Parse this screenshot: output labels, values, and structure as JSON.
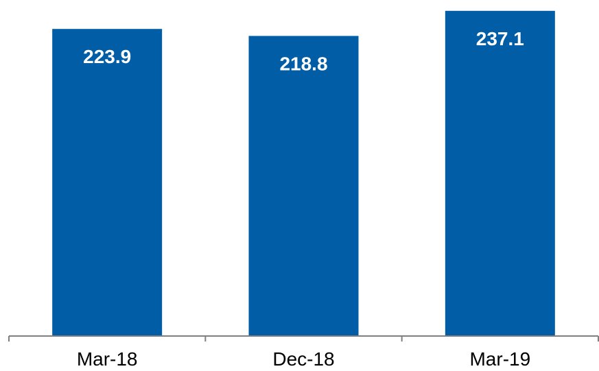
{
  "chart_data": {
    "type": "bar",
    "categories": [
      "Mar-18",
      "Dec-18",
      "Mar-19"
    ],
    "values": [
      223.9,
      218.8,
      237.1
    ],
    "data_labels": [
      "223.9",
      "218.8",
      "237.1"
    ],
    "ylim": [
      0,
      240
    ],
    "grid": false,
    "legend": "none",
    "colors": {
      "bar": "#005DA6",
      "axis": "#7F7F7F",
      "data_label": "#FFFFFF",
      "tick_label": "#000000"
    }
  }
}
